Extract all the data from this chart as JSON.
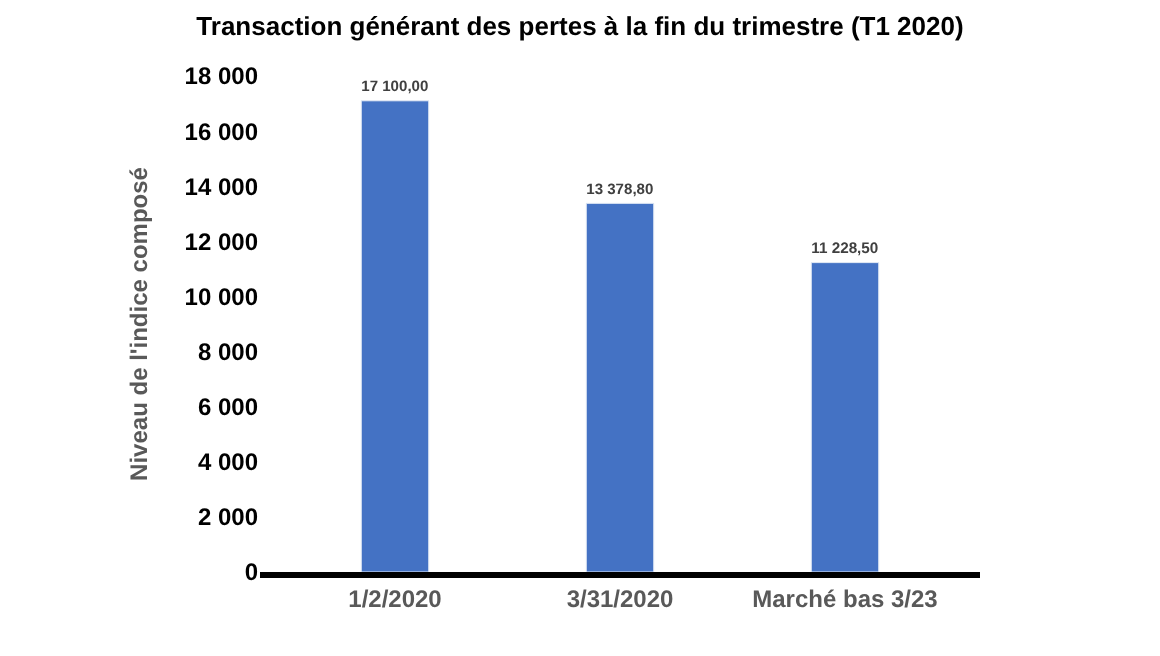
{
  "chart_data": {
    "type": "bar",
    "title": "Transaction générant des pertes à la fin du trimestre (T1 2020)",
    "ylabel": "Niveau de l'indice composé",
    "categories": [
      "1/2/2020",
      "3/31/2020",
      "Marché bas 3/23"
    ],
    "values": [
      17100,
      13378.8,
      11228.5
    ],
    "value_labels": [
      "17 100,00",
      "13 378,80",
      "11 228,50"
    ],
    "color": "#4472c4",
    "ylim": [
      0,
      18000
    ],
    "yticks": [
      {
        "value": 0,
        "label": "0"
      },
      {
        "value": 2000,
        "label": "2 000"
      },
      {
        "value": 4000,
        "label": "4 000"
      },
      {
        "value": 6000,
        "label": "6 000"
      },
      {
        "value": 8000,
        "label": "8 000"
      },
      {
        "value": 10000,
        "label": "10 000"
      },
      {
        "value": 12000,
        "label": "12 000"
      },
      {
        "value": 14000,
        "label": "14 000"
      },
      {
        "value": 16000,
        "label": "16 000"
      },
      {
        "value": 18000,
        "label": "18 000"
      }
    ],
    "legend": false
  }
}
